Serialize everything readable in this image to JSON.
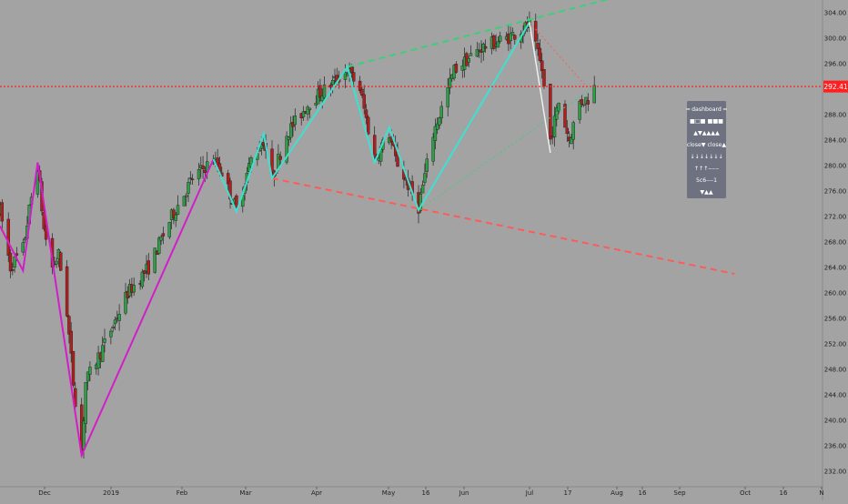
{
  "colors": {
    "background": "#a3a3a3",
    "candle_up": "#2e9e47",
    "candle_down": "#b01e1e",
    "zigzag_primary": "#d21ec8",
    "zigzag_secondary": "#3ee0d0",
    "channel_upper": "#3ad07a",
    "channel_lower": "#ff5a5a",
    "last_price_line": "#ff1f1f",
    "dashboard_bg": "#6e7280"
  },
  "last_price": {
    "value": 292.41,
    "label": "292.41"
  },
  "chart_data": {
    "type": "candlestick",
    "y_axis": {
      "range": [
        230.5,
        306
      ],
      "ticks": [
        "232.00",
        "236.00",
        "240.00",
        "244.00",
        "248.00",
        "252.00",
        "256.00",
        "260.00",
        "264.00",
        "268.00",
        "272.00",
        "276.00",
        "280.00",
        "284.00",
        "288.00",
        "292.00",
        "296.00",
        "300.00",
        "304.00"
      ]
    },
    "x_axis": {
      "labels": [
        "Dec",
        "2019",
        "Feb",
        "Mar",
        "Apr",
        "May",
        "16",
        "Jun",
        "Jul",
        "17",
        "Aug",
        "16",
        "Sep",
        "Oct",
        "16",
        "N"
      ]
    },
    "ohlc_path": [
      [
        "2018-11-15",
        273.0
      ],
      [
        "2018-11-20",
        264.0
      ],
      [
        "2018-11-26",
        267.0
      ],
      [
        "2018-11-30",
        275.0
      ],
      [
        "2018-12-03",
        280.0
      ],
      [
        "2018-12-06",
        270.0
      ],
      [
        "2018-12-10",
        264.0
      ],
      [
        "2018-12-13",
        266.0
      ],
      [
        "2018-12-17",
        257.0
      ],
      [
        "2018-12-20",
        246.0
      ],
      [
        "2018-12-24",
        235.0
      ],
      [
        "2018-12-26",
        246.0
      ],
      [
        "2019-01-04",
        252.0
      ],
      [
        "2019-01-15",
        260.0
      ],
      [
        "2019-01-25",
        264.0
      ],
      [
        "2019-02-05",
        272.0
      ],
      [
        "2019-02-15",
        278.0
      ],
      [
        "2019-02-25",
        281.0
      ],
      [
        "2019-03-01",
        279.0
      ],
      [
        "2019-03-08",
        273.0
      ],
      [
        "2019-03-15",
        281.0
      ],
      [
        "2019-03-21",
        284.0
      ],
      [
        "2019-03-25",
        278.0
      ],
      [
        "2019-04-01",
        285.0
      ],
      [
        "2019-04-12",
        290.0
      ],
      [
        "2019-04-23",
        293.0
      ],
      [
        "2019-04-30",
        295.0
      ],
      [
        "2019-05-06",
        292.0
      ],
      [
        "2019-05-13",
        281.0
      ],
      [
        "2019-05-20",
        285.0
      ],
      [
        "2019-05-23",
        281.0
      ],
      [
        "2019-06-03",
        273.5
      ],
      [
        "2019-06-10",
        285.0
      ],
      [
        "2019-06-20",
        295.0
      ],
      [
        "2019-07-03",
        298.5
      ],
      [
        "2019-07-15",
        300.0
      ],
      [
        "2019-07-26",
        302.0
      ],
      [
        "2019-08-01",
        295.0
      ],
      [
        "2019-08-05",
        284.0
      ],
      [
        "2019-08-09",
        290.0
      ],
      [
        "2019-08-14",
        284.0
      ],
      [
        "2019-08-19",
        290.0
      ],
      [
        "2019-08-23",
        290.5
      ],
      [
        "2019-08-26",
        292.41
      ]
    ],
    "zigzag_primary": [
      [
        "2018-11-15",
        270.5
      ],
      [
        "2018-11-26",
        263.5
      ],
      [
        "2018-12-03",
        280.5
      ],
      [
        "2018-12-24",
        234.5
      ],
      [
        "2019-02-25",
        281.0
      ]
    ],
    "zigzag_secondary": [
      [
        "2019-02-25",
        281.0
      ],
      [
        "2019-03-08",
        272.8
      ],
      [
        "2019-03-21",
        285.0
      ],
      [
        "2019-03-25",
        278.0
      ],
      [
        "2019-04-30",
        295.5
      ],
      [
        "2019-05-13",
        280.5
      ],
      [
        "2019-05-20",
        286.0
      ],
      [
        "2019-06-03",
        273.0
      ],
      [
        "2019-07-26",
        302.5
      ]
    ],
    "retrace_line": [
      [
        "2019-07-26",
        302.5
      ],
      [
        "2019-08-05",
        282.0
      ]
    ],
    "channel_upper": [
      [
        "2019-04-30",
        295.5
      ],
      [
        "2019-09-06",
        306.5
      ]
    ],
    "channel_lower": [
      [
        "2019-03-25",
        278.0
      ],
      [
        "2019-11-01",
        263.0
      ]
    ],
    "dotted_upper": [
      [
        "2019-07-26",
        302.5
      ],
      [
        "2019-08-22",
        292.5
      ]
    ],
    "dotted_lower": [
      [
        "2019-06-03",
        273.0
      ],
      [
        "2019-08-26",
        292.4
      ]
    ]
  },
  "dashboard": {
    "rows": [
      "━ dashboard ━",
      "■□■ ■■■",
      "▲▼▲▲▲▲",
      "close▼ close▲",
      "↓↓↓↓↓↓↓",
      "↑↑↑‒‒‒",
      "5c6‒‒1",
      "▼▲▲"
    ]
  }
}
